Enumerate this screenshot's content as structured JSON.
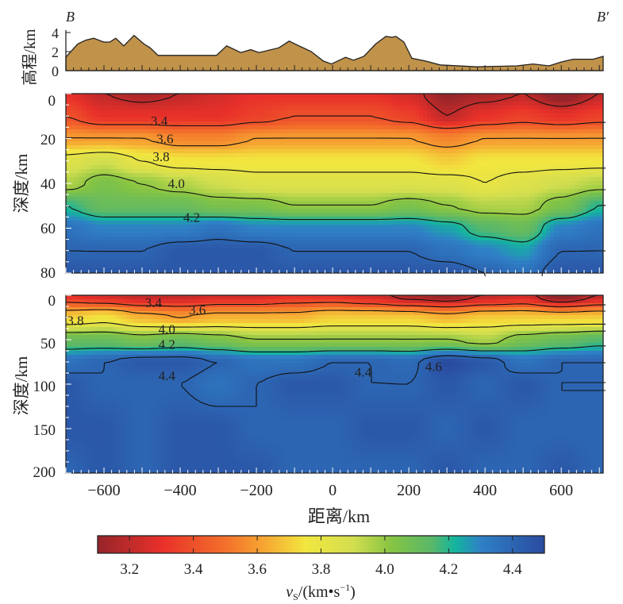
{
  "chart_data": [
    {
      "type": "area",
      "panel": "topography",
      "ylabel": "高程/km",
      "left_label": "B",
      "right_label": "B′",
      "xlim": [
        -700,
        710
      ],
      "ylim": [
        0,
        4
      ],
      "yticks": [
        "0",
        "2",
        "4"
      ],
      "fill_color": "#c0924a",
      "x": [
        -700,
        -696,
        -669,
        -648,
        -627,
        -600,
        -585,
        -569,
        -548,
        -521,
        -495,
        -479,
        -458,
        -305,
        -278,
        -241,
        -215,
        -193,
        -141,
        -114,
        -88,
        -56,
        -24,
        -3,
        34,
        55,
        82,
        113,
        140,
        156,
        166,
        187,
        208,
        245,
        282,
        378,
        483,
        526,
        568,
        599,
        631,
        684,
        710
      ],
      "y": [
        1.4,
        1.6,
        2.8,
        3.2,
        3.4,
        3.0,
        3.0,
        3.4,
        2.6,
        3.7,
        2.8,
        2.4,
        1.6,
        1.6,
        2.6,
        1.9,
        2.2,
        1.9,
        2.4,
        3.1,
        2.6,
        2.0,
        1.0,
        0.7,
        1.4,
        1.1,
        1.5,
        2.8,
        3.6,
        3.5,
        3.6,
        3.0,
        1.3,
        1.0,
        0.6,
        0.4,
        0.5,
        0.7,
        0.5,
        0.9,
        1.2,
        1.2,
        1.5
      ]
    },
    {
      "type": "heatmap",
      "panel": "crust",
      "ylabel": "深度/km",
      "xlim": [
        -700,
        710
      ],
      "ylim": [
        0,
        80
      ],
      "yticks": [
        "0",
        "20",
        "40",
        "60",
        "80"
      ],
      "x": [
        -700,
        -600,
        -500,
        -400,
        -300,
        -200,
        -100,
        0,
        100,
        200,
        300,
        400,
        500,
        600,
        700
      ],
      "depth": [
        0,
        10,
        20,
        30,
        40,
        50,
        60,
        70,
        80
      ],
      "values": [
        [
          3.3,
          3.2,
          3.15,
          3.2,
          3.25,
          3.3,
          3.3,
          3.3,
          3.3,
          3.25,
          3.1,
          3.15,
          3.2,
          3.05,
          3.2
        ],
        [
          3.4,
          3.3,
          3.3,
          3.3,
          3.3,
          3.35,
          3.4,
          3.4,
          3.4,
          3.35,
          3.2,
          3.3,
          3.35,
          3.3,
          3.35
        ],
        [
          3.6,
          3.6,
          3.6,
          3.55,
          3.55,
          3.6,
          3.6,
          3.6,
          3.6,
          3.6,
          3.55,
          3.6,
          3.6,
          3.6,
          3.6
        ],
        [
          3.85,
          3.9,
          3.8,
          3.75,
          3.75,
          3.75,
          3.75,
          3.75,
          3.75,
          3.75,
          3.7,
          3.75,
          3.75,
          3.75,
          3.75
        ],
        [
          3.95,
          4.05,
          4.0,
          3.95,
          3.9,
          3.85,
          3.85,
          3.85,
          3.85,
          3.85,
          3.85,
          3.8,
          3.85,
          3.9,
          3.95
        ],
        [
          4.2,
          4.1,
          4.1,
          4.1,
          4.05,
          4.05,
          4.0,
          4.0,
          4.0,
          4.05,
          4.0,
          3.95,
          3.95,
          4.05,
          4.2
        ],
        [
          4.35,
          4.3,
          4.3,
          4.3,
          4.35,
          4.3,
          4.3,
          4.3,
          4.3,
          4.3,
          4.25,
          4.15,
          4.1,
          4.3,
          4.35
        ],
        [
          4.4,
          4.4,
          4.4,
          4.45,
          4.45,
          4.45,
          4.4,
          4.4,
          4.4,
          4.4,
          4.35,
          4.3,
          4.25,
          4.4,
          4.4
        ],
        [
          4.45,
          4.45,
          4.45,
          4.45,
          4.45,
          4.45,
          4.45,
          4.45,
          4.45,
          4.45,
          4.45,
          4.4,
          4.35,
          4.45,
          4.45
        ]
      ],
      "contour_levels": [
        3.2,
        3.4,
        3.6,
        3.8,
        4.0,
        4.2,
        4.4
      ],
      "contour_labels": [
        {
          "text": "3.4",
          "x": -455,
          "depth": 12
        },
        {
          "text": "3.6",
          "x": -440,
          "depth": 20
        },
        {
          "text": "3.8",
          "x": -450,
          "depth": 28
        },
        {
          "text": "4.0",
          "x": -410,
          "depth": 40
        },
        {
          "text": "4.2",
          "x": -370,
          "depth": 55
        }
      ]
    },
    {
      "type": "heatmap",
      "panel": "mantle",
      "ylabel": "深度/km",
      "xlabel": "距离/km",
      "xlim": [
        -700,
        710
      ],
      "ylim": [
        0,
        200
      ],
      "yticks": [
        "0",
        "50",
        "100",
        "150",
        "200"
      ],
      "xticks": [
        "−600",
        "−400",
        "−200",
        "0",
        "200",
        "400",
        "600"
      ],
      "xtick_values": [
        -600,
        -400,
        -200,
        0,
        200,
        400,
        600
      ],
      "x": [
        -700,
        -600,
        -500,
        -400,
        -300,
        -200,
        -100,
        0,
        100,
        200,
        300,
        400,
        500,
        600,
        700
      ],
      "depth": [
        0,
        25,
        50,
        75,
        100,
        150,
        200
      ],
      "values": [
        [
          3.3,
          3.25,
          3.2,
          3.2,
          3.25,
          3.25,
          3.3,
          3.3,
          3.25,
          3.15,
          3.1,
          3.2,
          3.25,
          3.05,
          3.2
        ],
        [
          3.7,
          3.75,
          3.65,
          3.6,
          3.65,
          3.65,
          3.65,
          3.7,
          3.7,
          3.7,
          3.65,
          3.7,
          3.7,
          3.7,
          3.7
        ],
        [
          4.1,
          4.1,
          4.05,
          4.1,
          4.05,
          4.0,
          4.0,
          4.0,
          4.0,
          4.0,
          4.0,
          3.95,
          4.05,
          4.1,
          4.15
        ],
        [
          4.35,
          4.4,
          4.45,
          4.45,
          4.4,
          4.35,
          4.35,
          4.4,
          4.4,
          4.38,
          4.5,
          4.45,
          4.35,
          4.4,
          4.4
        ],
        [
          4.45,
          4.4,
          4.4,
          4.4,
          4.35,
          4.4,
          4.45,
          4.45,
          4.4,
          4.4,
          4.45,
          4.4,
          4.45,
          4.4,
          4.4
        ],
        [
          4.45,
          4.45,
          4.4,
          4.45,
          4.45,
          4.4,
          4.4,
          4.4,
          4.45,
          4.45,
          4.4,
          4.45,
          4.4,
          4.4,
          4.4
        ],
        [
          4.4,
          4.45,
          4.4,
          4.45,
          4.45,
          4.45,
          4.4,
          4.4,
          4.4,
          4.4,
          4.45,
          4.4,
          4.4,
          4.45,
          4.4
        ]
      ],
      "contour_levels": [
        3.2,
        3.4,
        3.6,
        3.8,
        4.0,
        4.2,
        4.4
      ],
      "contour_labels": [
        {
          "text": "3.4",
          "x": -470,
          "depth": 8
        },
        {
          "text": "3.6",
          "x": -355,
          "depth": 16
        },
        {
          "text": "3.8",
          "x": -675,
          "depth": 28
        },
        {
          "text": "4.0",
          "x": -435,
          "depth": 38
        },
        {
          "text": "4.2",
          "x": -435,
          "depth": 55
        },
        {
          "text": "4.4",
          "x": -435,
          "depth": 90
        },
        {
          "text": "4.4",
          "x": 80,
          "depth": 86
        },
        {
          "text": "4.6",
          "x": 265,
          "depth": 80
        }
      ]
    },
    {
      "type": "colorbar",
      "label_main": "v",
      "label_sub": "S",
      "label_unit": "/(km•s",
      "label_exp": "−1",
      "label_close": ")",
      "range": [
        3.1,
        4.5
      ],
      "ticks": [
        "3.2",
        "3.4",
        "3.6",
        "3.8",
        "4.0",
        "4.2",
        "4.4"
      ],
      "tick_values": [
        3.2,
        3.4,
        3.6,
        3.8,
        4.0,
        4.2,
        4.4
      ],
      "colormap": [
        {
          "v": 3.1,
          "c": "#95252a"
        },
        {
          "v": 3.3,
          "c": "#e8302a"
        },
        {
          "v": 3.5,
          "c": "#f3702b"
        },
        {
          "v": 3.62,
          "c": "#f6a532"
        },
        {
          "v": 3.75,
          "c": "#f2e63f"
        },
        {
          "v": 3.9,
          "c": "#d3de4f"
        },
        {
          "v": 4.02,
          "c": "#86c443"
        },
        {
          "v": 4.15,
          "c": "#58b76b"
        },
        {
          "v": 4.22,
          "c": "#14b59f"
        },
        {
          "v": 4.3,
          "c": "#2f80c6"
        },
        {
          "v": 4.5,
          "c": "#2a4b9f"
        }
      ]
    }
  ]
}
